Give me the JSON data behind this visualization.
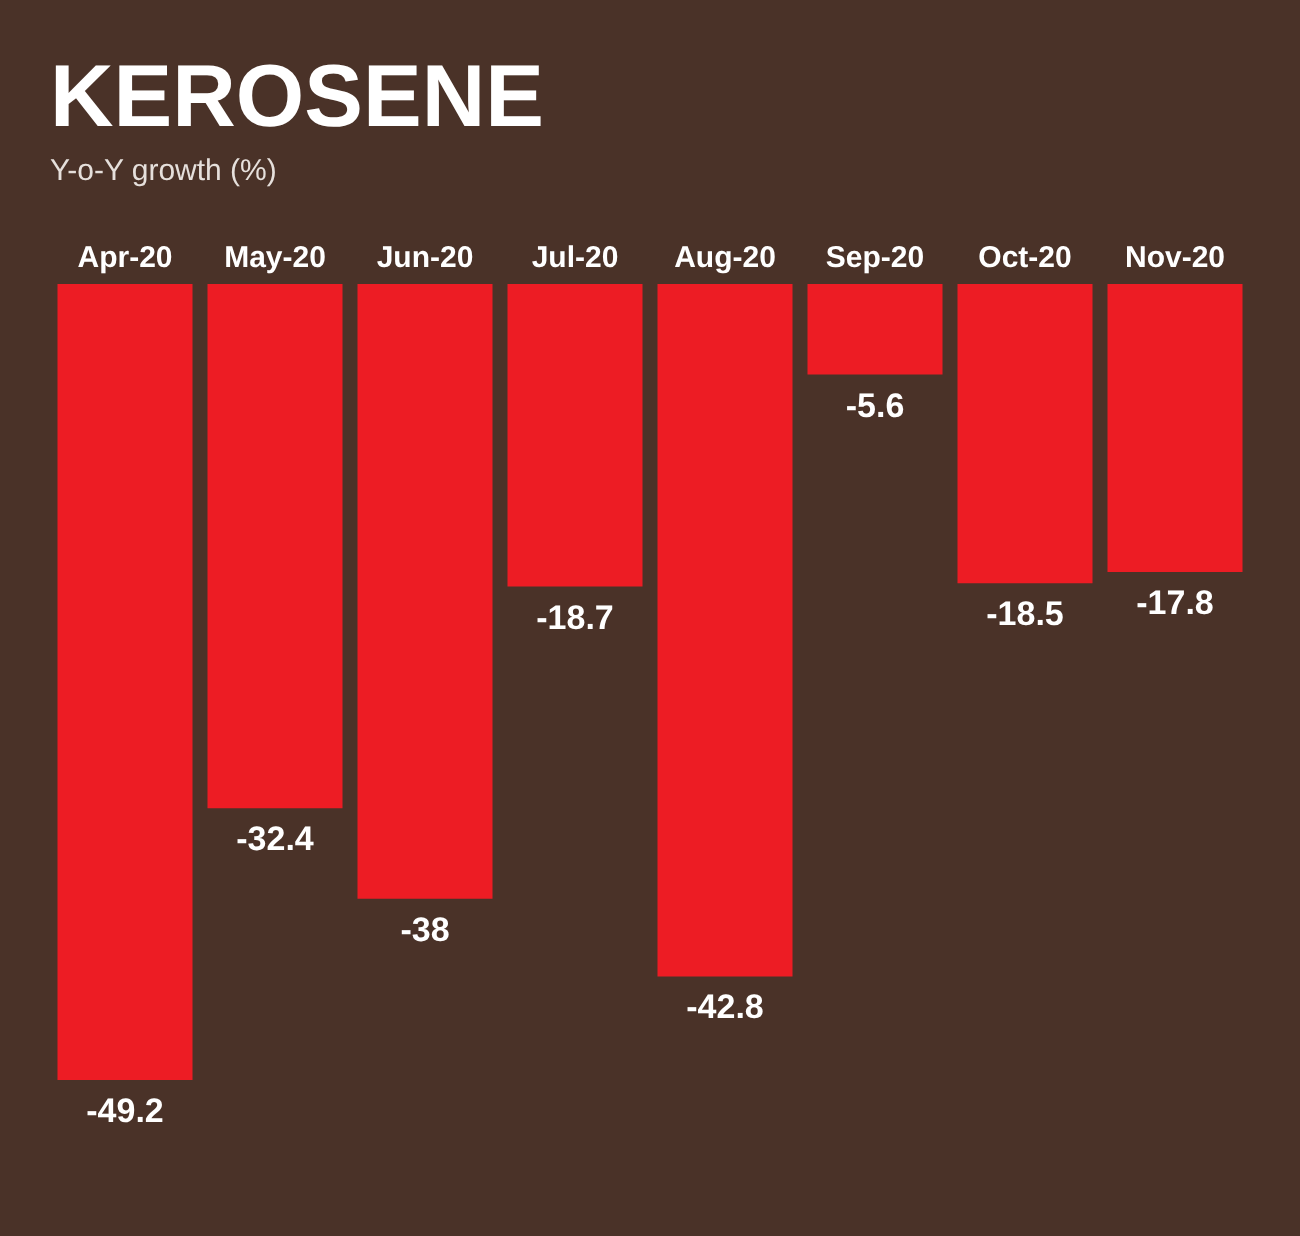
{
  "chart_data": {
    "type": "bar",
    "title": "KEROSENE",
    "subtitle": "Y-o-Y growth (%)",
    "categories": [
      "Apr-20",
      "May-20",
      "Jun-20",
      "Jul-20",
      "Aug-20",
      "Sep-20",
      "Oct-20",
      "Nov-20"
    ],
    "values": [
      -49.2,
      -32.4,
      -38,
      -18.7,
      -42.8,
      -5.6,
      -18.5,
      -17.8
    ],
    "color": "#ed1c24",
    "data_labels": true,
    "tick_labels": "x"
  }
}
